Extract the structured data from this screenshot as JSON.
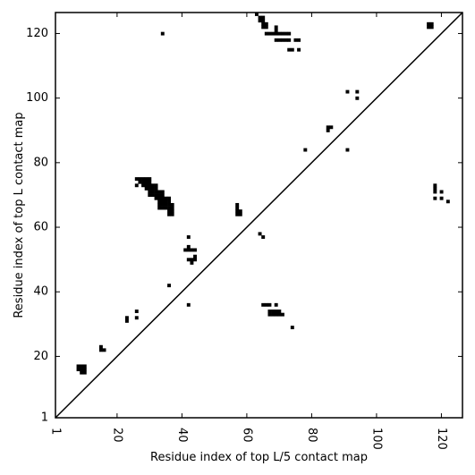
{
  "chart_data": {
    "type": "scatter",
    "title": "",
    "xlabel": "Residue index of top L/5 contact map",
    "ylabel": "Residue index of top L contact map",
    "xlim": [
      1,
      126.5
    ],
    "ylim": [
      1,
      126.5
    ],
    "x_ticks": [
      1,
      20,
      40,
      60,
      80,
      100,
      120
    ],
    "y_ticks": [
      1,
      20,
      40,
      60,
      80,
      100,
      120
    ],
    "x_tick_labels": [
      "1",
      "20",
      "40",
      "60",
      "80",
      "100",
      "120"
    ],
    "y_tick_labels": [
      "1",
      "20",
      "40",
      "60",
      "80",
      "100",
      "120"
    ],
    "x_tick_rotation": -90,
    "grid": false,
    "legend": "none",
    "marker": "filled square cells",
    "diagonal_line": [
      [
        1,
        1
      ],
      [
        126.5,
        126.5
      ]
    ],
    "colors": {
      "points": "#000000",
      "background": "#ffffff",
      "frame": "#000000"
    },
    "series": [
      {
        "region": "upper-left (top L contacts)",
        "points": [
          [
            8,
            17
          ],
          [
            9,
            17
          ],
          [
            10,
            17
          ],
          [
            8,
            16
          ],
          [
            9,
            16
          ],
          [
            10,
            16
          ],
          [
            9,
            15
          ],
          [
            10,
            15
          ],
          [
            15,
            23
          ],
          [
            15,
            22
          ],
          [
            16,
            22
          ],
          [
            23,
            32
          ],
          [
            23,
            31
          ],
          [
            26,
            34
          ],
          [
            26,
            32
          ],
          [
            26,
            75
          ],
          [
            27,
            75
          ],
          [
            28,
            75
          ],
          [
            29,
            75
          ],
          [
            30,
            75
          ],
          [
            26,
            73
          ],
          [
            27,
            74
          ],
          [
            28,
            74
          ],
          [
            29,
            74
          ],
          [
            30,
            74
          ],
          [
            28,
            73
          ],
          [
            29,
            73
          ],
          [
            30,
            73
          ],
          [
            31,
            73
          ],
          [
            32,
            73
          ],
          [
            29,
            72
          ],
          [
            30,
            72
          ],
          [
            31,
            72
          ],
          [
            32,
            72
          ],
          [
            30,
            71
          ],
          [
            31,
            71
          ],
          [
            32,
            71
          ],
          [
            33,
            71
          ],
          [
            34,
            71
          ],
          [
            30,
            70
          ],
          [
            31,
            70
          ],
          [
            32,
            70
          ],
          [
            33,
            70
          ],
          [
            34,
            70
          ],
          [
            32,
            69
          ],
          [
            33,
            69
          ],
          [
            34,
            69
          ],
          [
            35,
            69
          ],
          [
            36,
            69
          ],
          [
            33,
            68
          ],
          [
            34,
            68
          ],
          [
            35,
            68
          ],
          [
            36,
            68
          ],
          [
            33,
            67
          ],
          [
            34,
            67
          ],
          [
            35,
            67
          ],
          [
            36,
            67
          ],
          [
            37,
            67
          ],
          [
            33,
            66
          ],
          [
            34,
            66
          ],
          [
            35,
            66
          ],
          [
            36,
            66
          ],
          [
            37,
            66
          ],
          [
            36,
            65
          ],
          [
            37,
            65
          ],
          [
            36,
            64
          ],
          [
            37,
            64
          ],
          [
            34,
            120
          ],
          [
            36,
            42
          ],
          [
            42,
            57
          ],
          [
            42,
            54
          ],
          [
            41,
            53
          ],
          [
            42,
            53
          ],
          [
            43,
            53
          ],
          [
            44,
            53
          ],
          [
            42,
            50
          ],
          [
            43,
            50
          ],
          [
            44,
            50
          ],
          [
            44,
            51
          ],
          [
            43,
            49
          ],
          [
            57,
            67
          ],
          [
            57,
            66
          ],
          [
            57,
            65
          ],
          [
            58,
            65
          ],
          [
            57,
            64
          ],
          [
            58,
            64
          ],
          [
            64,
            58
          ],
          [
            65,
            57
          ],
          [
            78,
            84
          ],
          [
            91,
            84
          ],
          [
            85,
            91
          ],
          [
            86,
            91
          ],
          [
            85,
            90
          ],
          [
            91,
            102
          ],
          [
            94,
            102
          ],
          [
            94,
            100
          ],
          [
            63,
            126
          ],
          [
            64,
            125
          ],
          [
            65,
            125
          ],
          [
            64,
            124
          ],
          [
            65,
            124
          ],
          [
            65,
            123
          ],
          [
            66,
            123
          ],
          [
            65,
            122
          ],
          [
            66,
            122
          ],
          [
            66,
            120
          ],
          [
            67,
            120
          ],
          [
            68,
            120
          ],
          [
            69,
            120
          ],
          [
            70,
            120
          ],
          [
            71,
            120
          ],
          [
            72,
            120
          ],
          [
            73,
            120
          ],
          [
            69,
            122
          ],
          [
            69,
            121
          ],
          [
            69,
            118
          ],
          [
            70,
            118
          ],
          [
            71,
            118
          ],
          [
            72,
            118
          ],
          [
            73,
            118
          ],
          [
            75,
            118
          ],
          [
            76,
            118
          ],
          [
            73,
            115
          ],
          [
            74,
            115
          ],
          [
            76,
            115
          ],
          [
            116,
            123
          ],
          [
            117,
            123
          ],
          [
            116,
            122
          ],
          [
            117,
            122
          ]
        ]
      },
      {
        "region": "lower-right (top L/5 contacts)",
        "points": [
          [
            42,
            36
          ],
          [
            65,
            36
          ],
          [
            66,
            36
          ],
          [
            67,
            36
          ],
          [
            69,
            36
          ],
          [
            67,
            34
          ],
          [
            68,
            34
          ],
          [
            69,
            34
          ],
          [
            70,
            34
          ],
          [
            67,
            33
          ],
          [
            68,
            33
          ],
          [
            69,
            33
          ],
          [
            70,
            33
          ],
          [
            71,
            33
          ],
          [
            74,
            29
          ],
          [
            118,
            73
          ],
          [
            118,
            72
          ],
          [
            118,
            71
          ],
          [
            120,
            71
          ],
          [
            118,
            69
          ],
          [
            120,
            69
          ],
          [
            122,
            68
          ]
        ]
      }
    ]
  }
}
